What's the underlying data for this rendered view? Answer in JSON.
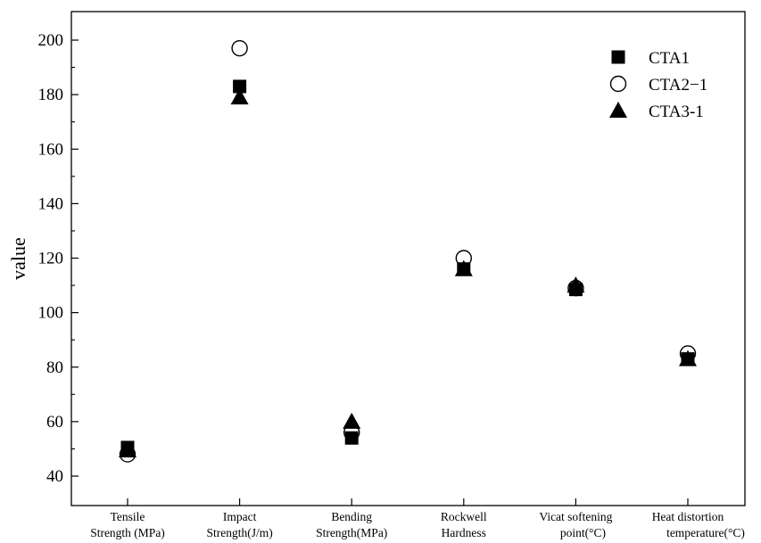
{
  "chart_data": {
    "type": "scatter",
    "title": "",
    "xlabel": "",
    "ylabel": "value",
    "ylim": [
      35,
      215
    ],
    "yticks": [
      40,
      60,
      80,
      100,
      120,
      140,
      160,
      180,
      200
    ],
    "grid": false,
    "legend_position": "top-right",
    "categories": [
      [
        "Tensile",
        "Strength (MPa)"
      ],
      [
        "Impact",
        "Strength(J/m)"
      ],
      [
        "Bending",
        "Strength(MPa)"
      ],
      [
        "Rockwell",
        "Hardness"
      ],
      [
        "Vicat softening",
        "point(°C)"
      ],
      [
        "Heat distortion",
        "temperature(°C)"
      ]
    ],
    "series": [
      {
        "name": "CTA1",
        "marker": "filled-square",
        "color": "#000000",
        "values": [
          50.5,
          183,
          54,
          116,
          108.5,
          83
        ]
      },
      {
        "name": "CTA2−1",
        "marker": "open-circle",
        "color": "#000000",
        "values": [
          48,
          197,
          56,
          120,
          109,
          85
        ]
      },
      {
        "name": "CTA3-1",
        "marker": "filled-triangle",
        "color": "#000000",
        "values": [
          49.5,
          179,
          60,
          116,
          110,
          83
        ]
      }
    ]
  }
}
